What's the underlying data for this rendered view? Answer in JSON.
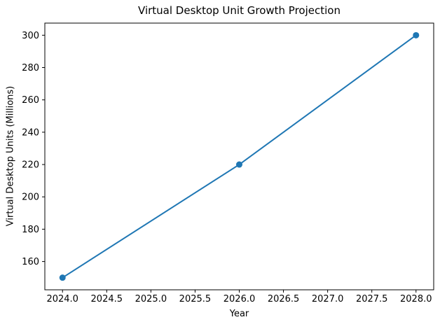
{
  "chart_data": {
    "type": "line",
    "title": "Virtual Desktop Unit Growth Projection",
    "xlabel": "Year",
    "ylabel": "Virtual Desktop Units (Millions)",
    "series": [
      {
        "name": "Virtual Desktop Units",
        "x": [
          2024,
          2026,
          2028
        ],
        "y": [
          150,
          220,
          300
        ]
      }
    ],
    "xlim": [
      2023.8,
      2028.2
    ],
    "ylim": [
      142.5,
      307.5
    ],
    "xticks": [
      2024.0,
      2024.5,
      2025.0,
      2025.5,
      2026.0,
      2026.5,
      2027.0,
      2027.5,
      2028.0
    ],
    "xtick_labels": [
      "2024.0",
      "2024.5",
      "2025.0",
      "2025.5",
      "2026.0",
      "2026.5",
      "2027.0",
      "2027.5",
      "2028.0"
    ],
    "yticks": [
      160,
      180,
      200,
      220,
      240,
      260,
      280,
      300
    ],
    "ytick_labels": [
      "160",
      "180",
      "200",
      "220",
      "240",
      "260",
      "280",
      "300"
    ],
    "grid": false,
    "legend": null,
    "line_color": "#1f77b4",
    "marker": "o",
    "background_color": "#ffffff",
    "spine_color": "#000000",
    "text_color": "#000000"
  }
}
